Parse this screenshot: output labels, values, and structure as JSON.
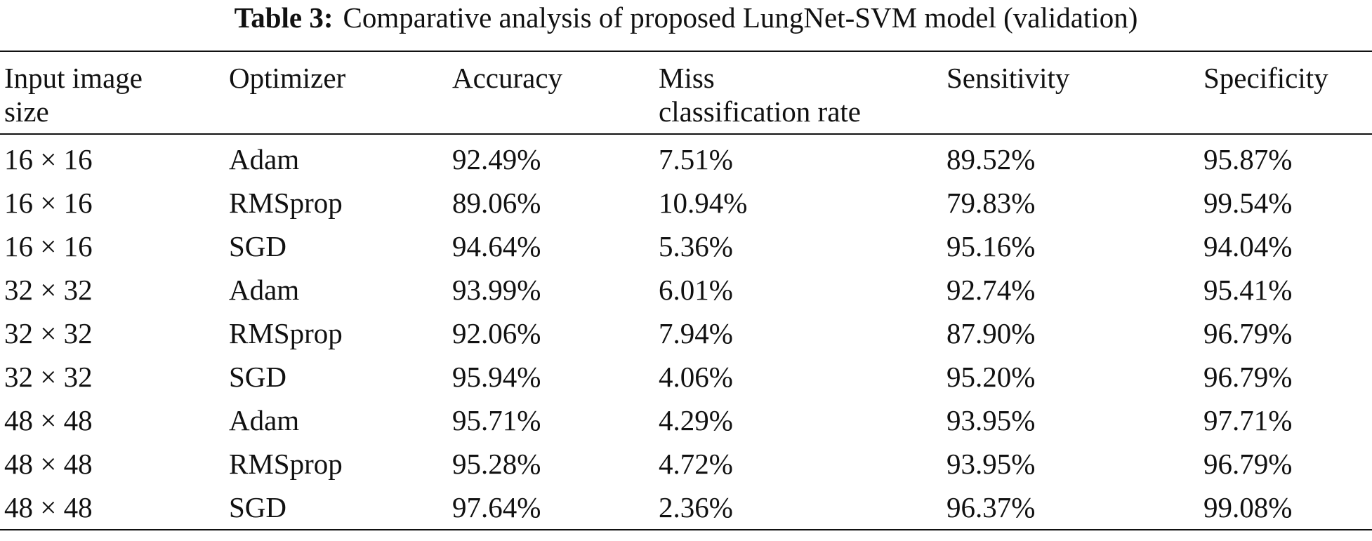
{
  "caption": {
    "label": "Table 3:",
    "text": "Comparative analysis of proposed LungNet-SVM model (validation)"
  },
  "table": {
    "headers": [
      {
        "lines": [
          "Input image",
          "size"
        ]
      },
      {
        "lines": [
          "Optimizer"
        ]
      },
      {
        "lines": [
          "Accuracy"
        ]
      },
      {
        "lines": [
          "Miss",
          "classification rate"
        ]
      },
      {
        "lines": [
          "Sensitivity"
        ]
      },
      {
        "lines": [
          "Specificity"
        ]
      }
    ],
    "rows": [
      [
        "16 × 16",
        "Adam",
        "92.49%",
        "7.51%",
        "89.52%",
        "95.87%"
      ],
      [
        "16 × 16",
        "RMSprop",
        "89.06%",
        "10.94%",
        "79.83%",
        "99.54%"
      ],
      [
        "16 × 16",
        "SGD",
        "94.64%",
        "5.36%",
        "95.16%",
        "94.04%"
      ],
      [
        "32 × 32",
        "Adam",
        "93.99%",
        "6.01%",
        "92.74%",
        "95.41%"
      ],
      [
        "32 × 32",
        "RMSprop",
        "92.06%",
        "7.94%",
        "87.90%",
        "96.79%"
      ],
      [
        "32 × 32",
        "SGD",
        "95.94%",
        "4.06%",
        "95.20%",
        "96.79%"
      ],
      [
        "48 × 48",
        "Adam",
        "95.71%",
        "4.29%",
        "93.95%",
        "97.71%"
      ],
      [
        "48 × 48",
        "RMSprop",
        "95.28%",
        "4.72%",
        "93.95%",
        "96.79%"
      ],
      [
        "48 × 48",
        "SGD",
        "97.64%",
        "2.36%",
        "96.37%",
        "99.08%"
      ]
    ]
  }
}
